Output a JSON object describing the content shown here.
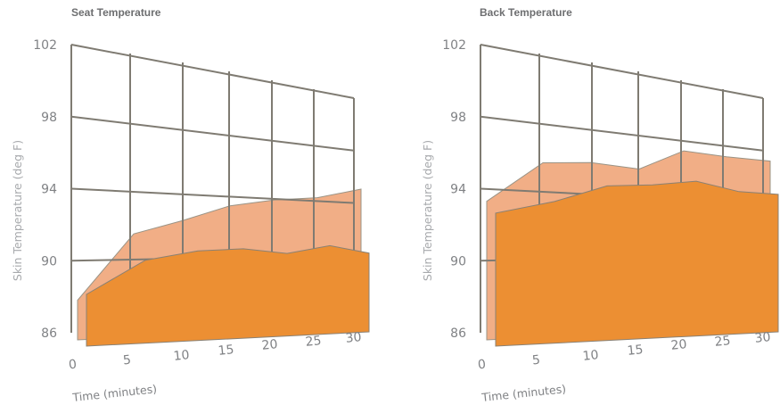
{
  "colors": {
    "front_series": "#ec8f33",
    "back_series": "#f1ae86",
    "grid": "#7f7b72",
    "text": "#808285"
  },
  "chart_data": [
    {
      "type": "area",
      "title": "Seat Temperature",
      "xlabel": "Time (minutes)",
      "ylabel": "Skin Temperature (deg F)",
      "x_ticks": [
        "0",
        "5",
        "10",
        "15",
        "20",
        "25",
        "30"
      ],
      "y_ticks": [
        "86",
        "90",
        "94",
        "98",
        "102"
      ],
      "ylim": [
        86,
        102
      ],
      "xlim": [
        0,
        30
      ],
      "grid": true,
      "series": [
        {
          "x": [
            0,
            5,
            10,
            15,
            20,
            25,
            30
          ],
          "values": [
            88.2,
            92.0,
            92.9,
            94.0,
            94.6,
            95.0,
            95.9
          ]
        },
        {
          "x": [
            0,
            5,
            10,
            15,
            20,
            25,
            30
          ],
          "values": [
            88.8,
            90.7,
            91.3,
            91.5,
            91.3,
            91.9,
            91.5
          ]
        }
      ]
    },
    {
      "type": "area",
      "title": "Back Temperature",
      "xlabel": "Time (minutes)",
      "ylabel": "Skin Temperature (deg F)",
      "x_ticks": [
        "0",
        "5",
        "10",
        "15",
        "20",
        "25",
        "30"
      ],
      "y_ticks": [
        "86",
        "90",
        "94",
        "98",
        "102"
      ],
      "ylim": [
        86,
        102
      ],
      "xlim": [
        0,
        30
      ],
      "grid": true,
      "series": [
        {
          "x": [
            0,
            5,
            10,
            15,
            20,
            25,
            30
          ],
          "values": [
            93.7,
            96.1,
            96.4,
            96.3,
            97.8,
            97.8,
            97.9
          ]
        },
        {
          "x": [
            0,
            5,
            10,
            15,
            20,
            25,
            30
          ],
          "values": [
            93.2,
            94.0,
            95.1,
            95.4,
            95.9,
            95.5,
            95.6
          ]
        }
      ]
    }
  ]
}
